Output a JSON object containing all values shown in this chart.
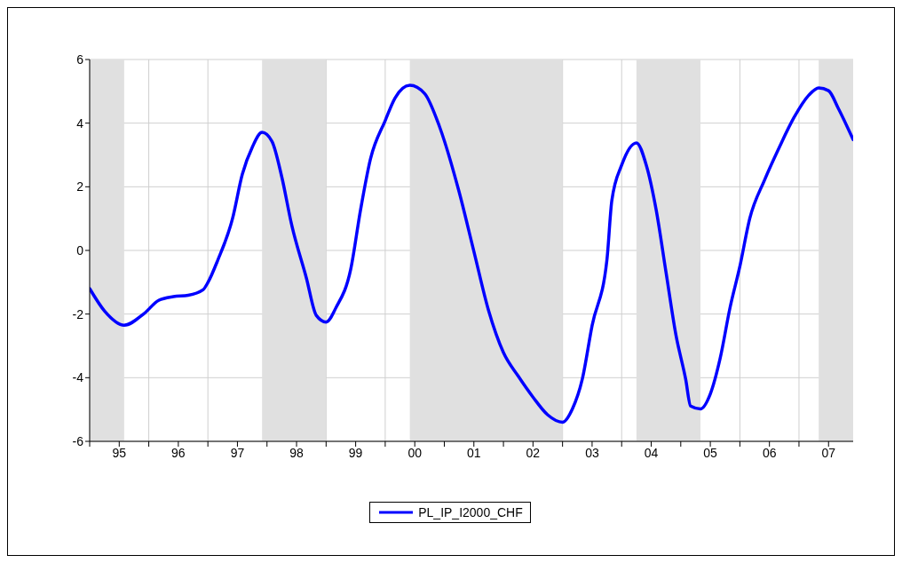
{
  "chart_data": {
    "type": "line",
    "x": [
      "1995-01",
      "1995-04",
      "1995-08",
      "1995-12",
      "1996-03",
      "1996-06",
      "1996-09",
      "1996-12",
      "1997-01",
      "1997-03",
      "1997-06",
      "1997-08",
      "1997-10",
      "1997-12",
      "1998-02",
      "1998-04",
      "1998-06",
      "1998-09",
      "1998-11",
      "1999-01",
      "1999-03",
      "1999-06",
      "1999-08",
      "1999-10",
      "2000-01",
      "2000-03",
      "2000-06",
      "2000-09",
      "2000-12",
      "2001-04",
      "2001-07",
      "2001-10",
      "2002-01",
      "2002-04",
      "2002-07",
      "2002-10",
      "2003-01",
      "2003-03",
      "2003-05",
      "2003-07",
      "2003-10",
      "2003-11",
      "2004-01",
      "2004-04",
      "2004-06",
      "2004-08",
      "2004-10",
      "2004-12",
      "2005-02",
      "2005-03",
      "2005-05",
      "2005-07",
      "2005-09",
      "2005-11",
      "2006-01",
      "2006-03",
      "2006-06",
      "2006-09",
      "2006-12",
      "2007-03",
      "2007-05",
      "2007-07",
      "2007-09",
      "2007-12"
    ],
    "series": [
      {
        "name": "PL_IP_I2000_CHF",
        "color": "#0000ff",
        "values": [
          -1.2,
          -1.9,
          -2.35,
          -1.99,
          -1.57,
          -1.45,
          -1.41,
          -1.24,
          -1.01,
          -0.31,
          1.0,
          2.4,
          3.24,
          3.71,
          3.43,
          2.31,
          0.81,
          -0.87,
          -2.04,
          -2.25,
          -1.8,
          -0.59,
          1.28,
          2.87,
          4.08,
          4.79,
          5.19,
          4.93,
          3.9,
          1.84,
          -0.03,
          -1.9,
          -3.21,
          -3.95,
          -4.61,
          -5.17,
          -5.4,
          -4.98,
          -4.05,
          -2.36,
          -0.31,
          1.56,
          2.68,
          3.38,
          2.68,
          1.28,
          -0.68,
          -2.64,
          -4.05,
          -4.89,
          -4.98,
          -4.51,
          -3.39,
          -1.8,
          -0.5,
          1.0,
          2.21,
          3.24,
          4.18,
          4.88,
          5.11,
          5.02,
          4.46,
          3.48
        ]
      }
    ],
    "xlim": [
      "1995-01",
      "2007-12"
    ],
    "xticks": [
      {
        "value": "1995-01",
        "label": null
      },
      {
        "value": "1995-07",
        "label": "95"
      },
      {
        "value": "1996-01",
        "label": null
      },
      {
        "value": "1996-07",
        "label": "96"
      },
      {
        "value": "1997-01",
        "label": null
      },
      {
        "value": "1997-07",
        "label": "97"
      },
      {
        "value": "1998-01",
        "label": null
      },
      {
        "value": "1998-07",
        "label": "98"
      },
      {
        "value": "1999-01",
        "label": null
      },
      {
        "value": "1999-07",
        "label": "99"
      },
      {
        "value": "2000-01",
        "label": null
      },
      {
        "value": "2000-07",
        "label": "00"
      },
      {
        "value": "2001-01",
        "label": null
      },
      {
        "value": "2001-07",
        "label": "01"
      },
      {
        "value": "2002-01",
        "label": null
      },
      {
        "value": "2002-07",
        "label": "02"
      },
      {
        "value": "2003-01",
        "label": null
      },
      {
        "value": "2003-07",
        "label": "03"
      },
      {
        "value": "2004-01",
        "label": null
      },
      {
        "value": "2004-07",
        "label": "04"
      },
      {
        "value": "2005-01",
        "label": null
      },
      {
        "value": "2005-07",
        "label": "05"
      },
      {
        "value": "2006-01",
        "label": null
      },
      {
        "value": "2006-07",
        "label": "06"
      },
      {
        "value": "2007-01",
        "label": null
      },
      {
        "value": "2007-07",
        "label": "07"
      }
    ],
    "ylim": [
      -6,
      6
    ],
    "yticks": [
      -6,
      -4,
      -2,
      0,
      2,
      4,
      6
    ],
    "bands": [
      {
        "axis": "x",
        "from": "1995-01",
        "to": "1995-08",
        "color": "#e0e0e0"
      },
      {
        "axis": "x",
        "from": "1997-12",
        "to": "1999-01",
        "color": "#e0e0e0"
      },
      {
        "axis": "x",
        "from": "2000-06",
        "to": "2003-01",
        "color": "#e0e0e0"
      },
      {
        "axis": "x",
        "from": "2004-04",
        "to": "2005-05",
        "color": "#e0e0e0"
      },
      {
        "axis": "x",
        "from": "2007-05",
        "to": "2007-12",
        "color": "#e0e0e0"
      }
    ],
    "grid": true,
    "legend": "bottom",
    "line_style": "solid",
    "marker": "none"
  }
}
